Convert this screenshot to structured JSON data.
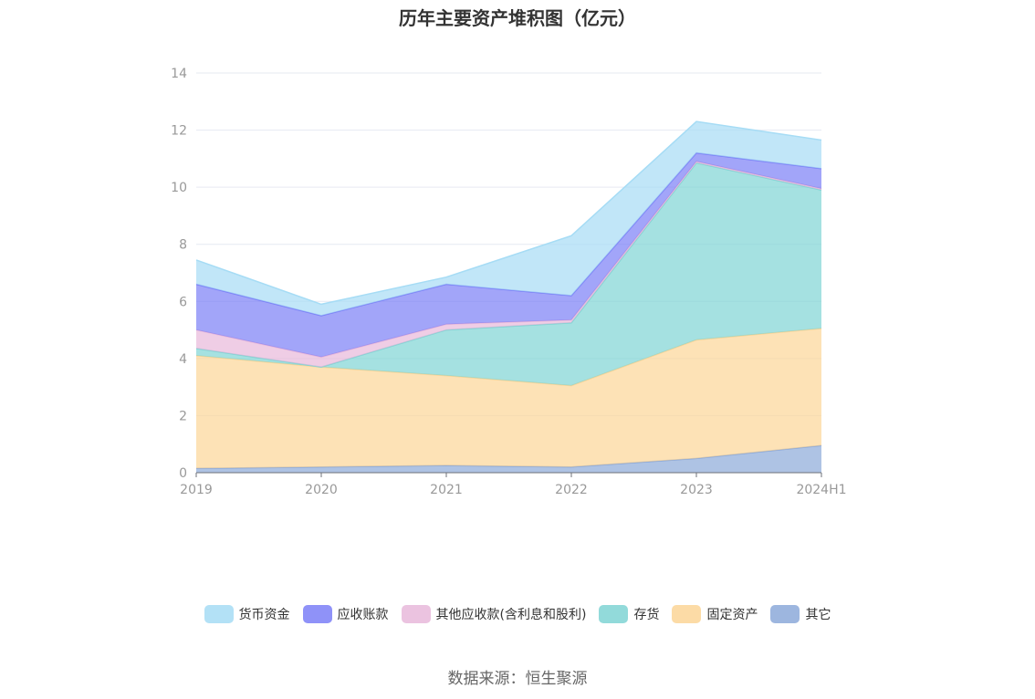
{
  "chart_data": {
    "type": "area",
    "stacked": true,
    "title": "历年主要资产堆积图（亿元）",
    "categories": [
      "2019",
      "2020",
      "2021",
      "2022",
      "2023",
      "2024H1"
    ],
    "ylim": [
      0,
      14
    ],
    "yticks": [
      "0",
      "2",
      "4",
      "6",
      "8",
      "10",
      "12",
      "14"
    ],
    "grid": true,
    "legend_position": "bottom",
    "series": [
      {
        "name": "其它",
        "color": "#8ca9d9",
        "values": [
          0.15,
          0.2,
          0.25,
          0.2,
          0.5,
          0.95
        ]
      },
      {
        "name": "固定资产",
        "color": "#fcd597",
        "values": [
          3.95,
          3.5,
          3.15,
          2.85,
          4.15,
          4.1
        ]
      },
      {
        "name": "存货",
        "color": "#7fd4d4",
        "values": [
          0.25,
          0.0,
          1.6,
          2.2,
          6.2,
          4.85
        ]
      },
      {
        "name": "其他应收款(含利息和股利)",
        "color": "#e8b8da",
        "values": [
          0.65,
          0.35,
          0.2,
          0.1,
          0.05,
          0.05
        ]
      },
      {
        "name": "应收账款",
        "color": "#7b7ff7",
        "values": [
          1.6,
          1.45,
          1.4,
          0.85,
          0.3,
          0.7
        ]
      },
      {
        "name": "货币资金",
        "color": "#a6dcf5",
        "values": [
          0.85,
          0.4,
          0.25,
          2.1,
          1.1,
          1.0
        ]
      }
    ]
  },
  "legend_order": [
    "货币资金",
    "应收账款",
    "其他应收款(含利息和股利)",
    "存货",
    "固定资产",
    "其它"
  ],
  "source": "数据来源：恒生聚源"
}
